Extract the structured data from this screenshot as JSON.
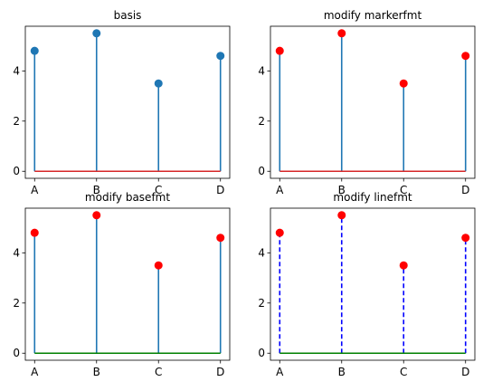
{
  "chart_data": [
    {
      "type": "stem",
      "title": "basis",
      "categories": [
        "A",
        "B",
        "C",
        "D"
      ],
      "values": [
        4.8,
        5.5,
        3.5,
        4.6
      ],
      "yticks": [
        0,
        2,
        4
      ],
      "ylim": [
        -0.28,
        5.78
      ],
      "stem_color": "#1f77b4",
      "stem_style": "solid",
      "marker_color": "#1f77b4",
      "baseline_color": "#d62728"
    },
    {
      "type": "stem",
      "title": "modify markerfmt",
      "categories": [
        "A",
        "B",
        "C",
        "D"
      ],
      "values": [
        4.8,
        5.5,
        3.5,
        4.6
      ],
      "yticks": [
        0,
        2,
        4
      ],
      "ylim": [
        -0.28,
        5.78
      ],
      "stem_color": "#1f77b4",
      "stem_style": "solid",
      "marker_color": "#ff0000",
      "baseline_color": "#d62728"
    },
    {
      "type": "stem",
      "title": "modify basefmt",
      "categories": [
        "A",
        "B",
        "C",
        "D"
      ],
      "values": [
        4.8,
        5.5,
        3.5,
        4.6
      ],
      "yticks": [
        0,
        2,
        4
      ],
      "ylim": [
        -0.28,
        5.78
      ],
      "stem_color": "#1f77b4",
      "stem_style": "solid",
      "marker_color": "#ff0000",
      "baseline_color": "#008000"
    },
    {
      "type": "stem",
      "title": "modify linefmt",
      "categories": [
        "A",
        "B",
        "C",
        "D"
      ],
      "values": [
        4.8,
        5.5,
        3.5,
        4.6
      ],
      "yticks": [
        0,
        2,
        4
      ],
      "ylim": [
        -0.28,
        5.78
      ],
      "stem_color": "#0000ff",
      "stem_style": "dashed",
      "marker_color": "#ff0000",
      "baseline_color": "#008000"
    }
  ]
}
